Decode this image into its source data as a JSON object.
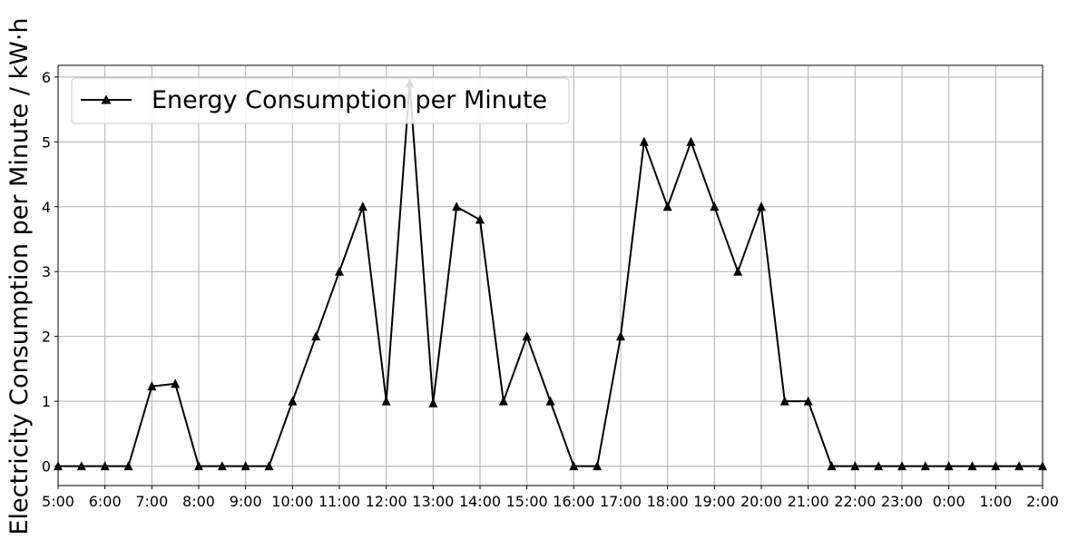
{
  "chart_data": {
    "type": "line",
    "title": "",
    "xlabel": "",
    "ylabel": "Electricity Consumption per Minute / kW·h",
    "x_tick_labels": [
      "5:00",
      "6:00",
      "7:00",
      "8:00",
      "9:00",
      "10:00",
      "11:00",
      "12:00",
      "13:00",
      "14:00",
      "15:00",
      "16:00",
      "17:00",
      "18:00",
      "19:00",
      "20:00",
      "21:00",
      "22:00",
      "23:00",
      "0:00",
      "1:00",
      "2:00"
    ],
    "y_ticks": [
      0,
      1,
      2,
      3,
      4,
      5,
      6
    ],
    "ylim": [
      -0.3,
      6.18
    ],
    "grid": true,
    "legend_position": "top-left",
    "series": [
      {
        "name": "Energy Consumption per Minute",
        "color": "#000000",
        "marker": "triangle",
        "x": [
          "5:00",
          "5:30",
          "6:00",
          "6:30",
          "7:00",
          "7:30",
          "8:00",
          "8:30",
          "9:00",
          "9:30",
          "10:00",
          "10:30",
          "11:00",
          "11:30",
          "12:00",
          "12:30",
          "13:00",
          "13:30",
          "14:00",
          "14:30",
          "15:00",
          "15:30",
          "16:00",
          "16:30",
          "17:00",
          "17:30",
          "18:00",
          "18:30",
          "19:00",
          "19:30",
          "20:00",
          "20:30",
          "21:00",
          "21:30",
          "22:00",
          "22:30",
          "23:00",
          "23:30",
          "0:00",
          "0:30",
          "1:00",
          "1:30",
          "2:00"
        ],
        "values": [
          0,
          0,
          0,
          0,
          1.23,
          1.27,
          0,
          0,
          0,
          0,
          1,
          2,
          3,
          4,
          1,
          5.9,
          0.97,
          4,
          3.8,
          1,
          2,
          1,
          0,
          0,
          2,
          5,
          4,
          5,
          4,
          3,
          4,
          1,
          1,
          0,
          0,
          0,
          0,
          0,
          0,
          0,
          0,
          0,
          0
        ]
      }
    ]
  }
}
